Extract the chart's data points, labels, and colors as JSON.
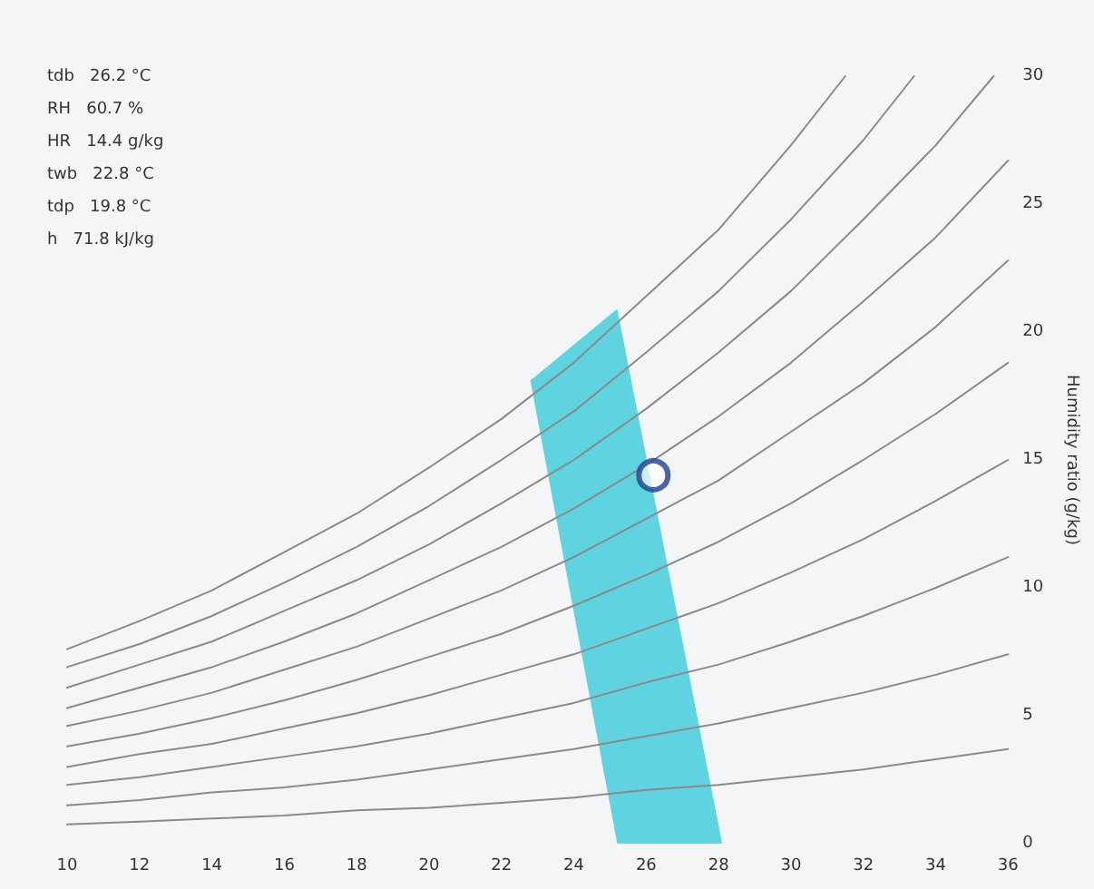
{
  "chart_data": {
    "type": "line",
    "ylabel": "Humidity ratio (g/kg)",
    "xlim": [
      10,
      36
    ],
    "xticks": [
      10,
      12,
      14,
      16,
      18,
      20,
      22,
      24,
      26,
      28,
      30,
      32,
      34,
      36
    ],
    "ylim": [
      0,
      30
    ],
    "yticks": [
      0,
      5,
      10,
      15,
      20,
      25,
      30
    ],
    "grid": false,
    "marker": "none",
    "line_style": "solid",
    "x": [
      10,
      12,
      14,
      16,
      18,
      20,
      22,
      24,
      26,
      28,
      30,
      32,
      34,
      36
    ],
    "series": [
      {
        "color": "#8a8a8a",
        "values": [
          0.75,
          0.86,
          0.98,
          1.1,
          1.3,
          1.4,
          1.6,
          1.8,
          2.1,
          2.3,
          2.6,
          2.9,
          3.3,
          3.7
        ]
      },
      {
        "color": "#8a8a8a",
        "values": [
          1.5,
          1.7,
          2.0,
          2.2,
          2.5,
          2.9,
          3.3,
          3.7,
          4.2,
          4.7,
          5.3,
          5.9,
          6.6,
          7.4
        ]
      },
      {
        "color": "#8a8a8a",
        "values": [
          2.3,
          2.6,
          3.0,
          3.4,
          3.8,
          4.3,
          4.9,
          5.5,
          6.3,
          7.0,
          7.9,
          8.9,
          10.0,
          11.2
        ]
      },
      {
        "color": "#8a8a8a",
        "values": [
          3.0,
          3.5,
          3.9,
          4.5,
          5.1,
          5.8,
          6.6,
          7.4,
          8.4,
          9.4,
          10.6,
          11.9,
          13.4,
          15.0
        ]
      },
      {
        "color": "#8a8a8a",
        "values": [
          3.8,
          4.3,
          4.9,
          5.6,
          6.4,
          7.3,
          8.2,
          9.3,
          10.5,
          11.8,
          13.3,
          15.0,
          16.8,
          18.8
        ]
      },
      {
        "color": "#8a8a8a",
        "values": [
          4.6,
          5.2,
          5.9,
          6.8,
          7.7,
          8.8,
          9.9,
          11.2,
          12.7,
          14.2,
          16.1,
          18.0,
          20.2,
          22.8
        ]
      },
      {
        "color": "#8a8a8a",
        "values": [
          5.3,
          6.1,
          6.9,
          7.9,
          9.0,
          10.3,
          11.6,
          13.1,
          14.8,
          16.7,
          18.8,
          21.2,
          23.7,
          26.7
        ]
      },
      {
        "color": "#8a8a8a",
        "x": [
          10,
          12,
          14,
          16,
          18,
          20,
          22,
          24,
          26,
          28,
          30,
          32,
          34,
          35.6
        ],
        "values": [
          6.1,
          7.0,
          7.9,
          9.1,
          10.3,
          11.7,
          13.3,
          15.0,
          17.0,
          19.2,
          21.6,
          24.4,
          27.3,
          30
        ]
      },
      {
        "color": "#8a8a8a",
        "x": [
          10,
          12,
          14,
          16,
          18,
          20,
          22,
          24,
          26,
          28,
          30,
          32,
          33.4
        ],
        "values": [
          6.9,
          7.8,
          8.9,
          10.2,
          11.6,
          13.2,
          15.0,
          16.9,
          19.2,
          21.6,
          24.4,
          27.5,
          30
        ]
      },
      {
        "color": "#8a8a8a",
        "x": [
          10,
          12,
          14,
          16,
          18,
          20,
          22,
          24,
          26,
          28,
          30,
          31.5
        ],
        "values": [
          7.6,
          8.7,
          9.9,
          11.4,
          12.9,
          14.7,
          16.6,
          18.8,
          21.4,
          24.0,
          27.3,
          30
        ]
      },
      {
        "type": "area",
        "color": "#5fd3e0",
        "x": [
          22.8,
          25.2,
          28.1,
          25.2
        ],
        "values": [
          18.1,
          20.9,
          0,
          0
        ]
      },
      {
        "type": "scatter",
        "color": "#23408e",
        "marker": "circle",
        "x": [
          26.2
        ],
        "values": [
          14.4
        ]
      }
    ],
    "annotations": [
      "tdb   26.2 °C",
      "RH   60.7 %",
      "HR   14.4 g/kg",
      "twb   22.8 °C",
      "tdp   19.8 °C",
      "h   71.8 kJ/kg"
    ]
  }
}
